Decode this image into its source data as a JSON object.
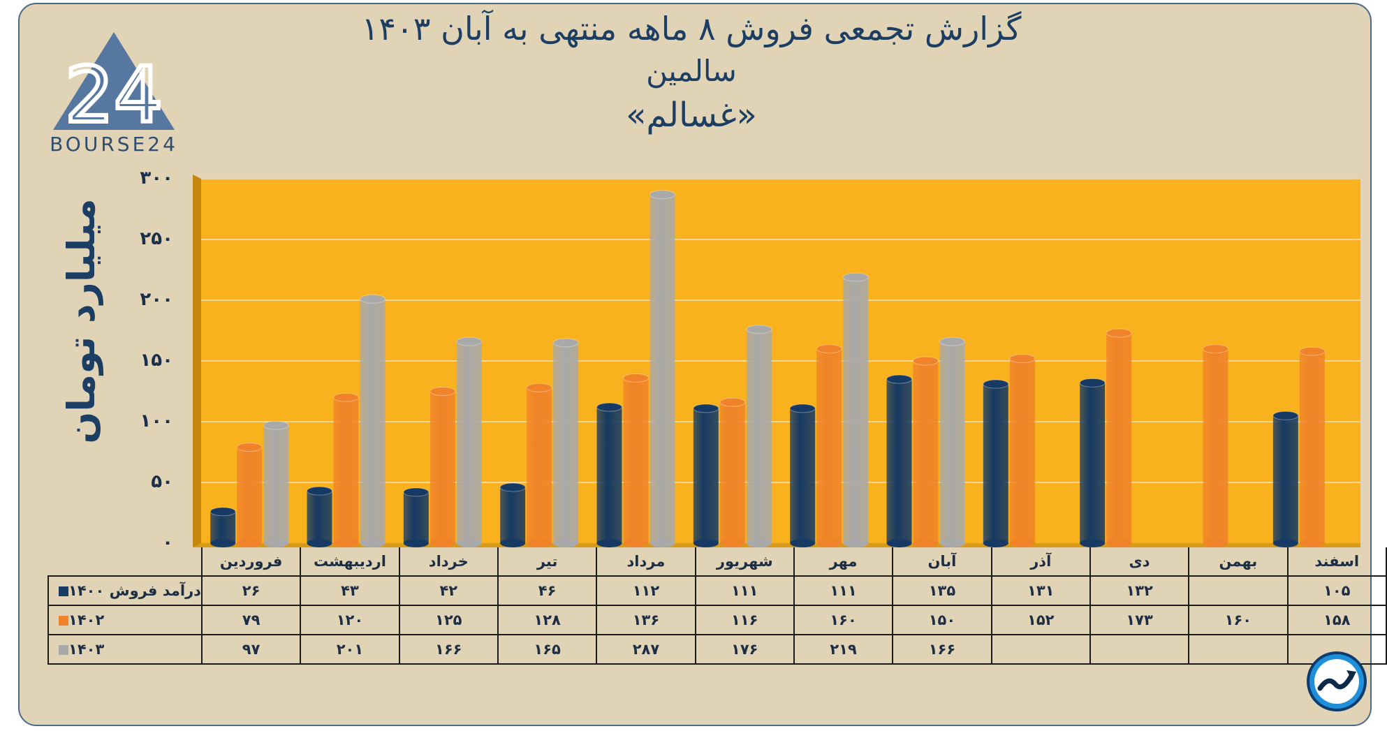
{
  "header": {
    "title_line1": "گزارش تجمعی فروش ۸ ماهه منتهی به آبان ۱۴۰۳",
    "title_line2": "سالمین",
    "title_line3": "«غسالم»"
  },
  "logo": {
    "text": "BOURSE24",
    "mark": "24"
  },
  "chart_data": {
    "type": "bar",
    "ylabel": "میلیارد تومان",
    "ylim": [
      0,
      300
    ],
    "yticks": [
      "۰",
      "۵۰",
      "۱۰۰",
      "۱۵۰",
      "۲۰۰",
      "۲۵۰",
      "۳۰۰"
    ],
    "categories": [
      "فروردین",
      "اردیبهشت",
      "خرداد",
      "تیر",
      "مرداد",
      "شهریور",
      "مهر",
      "آبان",
      "آذر",
      "دی",
      "بهمن",
      "اسفند"
    ],
    "series": [
      {
        "name": "درآمد فروش ۱۴۰۰",
        "color": "#163a63",
        "values": [
          26,
          43,
          42,
          46,
          112,
          111,
          111,
          135,
          131,
          132,
          null,
          105
        ]
      },
      {
        "name": "۱۴۰۲",
        "color": "#f08329",
        "values": [
          79,
          120,
          125,
          128,
          136,
          116,
          160,
          150,
          152,
          173,
          160,
          158
        ]
      },
      {
        "name": "۱۴۰۳",
        "color": "#a9a9a9",
        "values": [
          97,
          201,
          166,
          165,
          287,
          176,
          219,
          166,
          null,
          null,
          null,
          null
        ]
      }
    ],
    "table": [
      [
        "۲۶",
        "۴۳",
        "۴۲",
        "۴۶",
        "۱۱۲",
        "۱۱۱",
        "۱۱۱",
        "۱۳۵",
        "۱۳۱",
        "۱۳۲",
        "",
        "۱۰۵"
      ],
      [
        "۷۹",
        "۱۲۰",
        "۱۲۵",
        "۱۲۸",
        "۱۳۶",
        "۱۱۶",
        "۱۶۰",
        "۱۵۰",
        "۱۵۲",
        "۱۷۳",
        "۱۶۰",
        "۱۵۸"
      ],
      [
        "۹۷",
        "۲۰۱",
        "۱۶۶",
        "۱۶۵",
        "۲۸۷",
        "۱۷۶",
        "۲۱۹",
        "۱۶۶",
        "",
        "",
        "",
        ""
      ]
    ],
    "plot_background": "#f9b11d",
    "grid": true,
    "legend": "table-left"
  },
  "colors": {
    "panel": "#e0d3b6",
    "accent": "#1d3e63"
  },
  "corner_icon": "trend-arrow-icon"
}
